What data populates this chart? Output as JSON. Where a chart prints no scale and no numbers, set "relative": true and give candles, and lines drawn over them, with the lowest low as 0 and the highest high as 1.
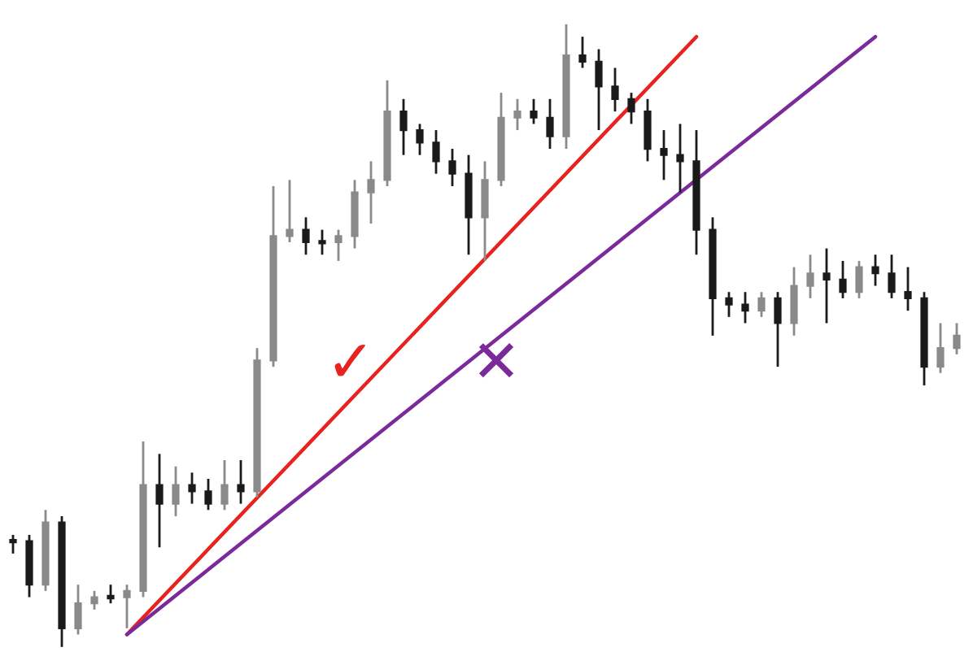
{
  "chart_data": {
    "type": "candlestick",
    "relative": true,
    "tick_labels": false,
    "colors": [
      "#1a1a1a",
      "#1a1a1a",
      "#8a8a8a",
      "#1a1a1a",
      "#8a8a8a",
      "#8a8a8a",
      "#1a1a1a",
      "#8a8a8a",
      "#8a8a8a",
      "#1a1a1a",
      "#8a8a8a",
      "#1a1a1a",
      "#1a1a1a",
      "#8a8a8a",
      "#1a1a1a",
      "#8a8a8a",
      "#8a8a8a",
      "#8a8a8a",
      "#1a1a1a",
      "#1a1a1a",
      "#8a8a8a",
      "#8a8a8a",
      "#8a8a8a",
      "#8a8a8a",
      "#1a1a1a",
      "#1a1a1a",
      "#1a1a1a",
      "#1a1a1a",
      "#1a1a1a",
      "#8a8a8a",
      "#8a8a8a",
      "#8a8a8a",
      "#1a1a1a",
      "#1a1a1a",
      "#8a8a8a",
      "#1a1a1a",
      "#1a1a1a",
      "#1a1a1a",
      "#1a1a1a",
      "#1a1a1a",
      "#1a1a1a",
      "#1a1a1a",
      "#1a1a1a",
      "#1a1a1a",
      "#1a1a1a",
      "#1a1a1a",
      "#8a8a8a",
      "#1a1a1a",
      "#8a8a8a",
      "#8a8a8a",
      "#1a1a1a",
      "#1a1a1a",
      "#8a8a8a",
      "#1a1a1a",
      "#1a1a1a",
      "#1a1a1a",
      "#1a1a1a",
      "#8a8a8a",
      "#8a8a8a"
    ],
    "categories": [
      null,
      null,
      null,
      null,
      null,
      null,
      null,
      null,
      null,
      null,
      null,
      null,
      null,
      null,
      null,
      null,
      null,
      null,
      null,
      null,
      null,
      null,
      null,
      null,
      null,
      null,
      null,
      null,
      null,
      null,
      null,
      null,
      null,
      null,
      null,
      null,
      null,
      null,
      null,
      null,
      null,
      null,
      null,
      null,
      null,
      null,
      null,
      null,
      null,
      null,
      null,
      null,
      null,
      null,
      null,
      null,
      null,
      null,
      null
    ],
    "ohlc": [
      [
        0.17,
        0.18,
        0.15,
        0.17
      ],
      [
        0.17,
        0.18,
        0.08,
        0.1
      ],
      [
        0.1,
        0.22,
        0.09,
        0.2
      ],
      [
        0.2,
        0.21,
        0.0,
        0.03
      ],
      [
        0.03,
        0.1,
        0.02,
        0.07
      ],
      [
        0.07,
        0.09,
        0.06,
        0.08
      ],
      [
        0.08,
        0.1,
        0.07,
        0.08
      ],
      [
        0.08,
        0.1,
        0.03,
        0.09
      ],
      [
        0.09,
        0.33,
        0.08,
        0.26
      ],
      [
        0.26,
        0.31,
        0.16,
        0.23
      ],
      [
        0.23,
        0.29,
        0.21,
        0.26
      ],
      [
        0.26,
        0.28,
        0.23,
        0.25
      ],
      [
        0.25,
        0.27,
        0.22,
        0.23
      ],
      [
        0.23,
        0.3,
        0.22,
        0.26
      ],
      [
        0.26,
        0.3,
        0.23,
        0.25
      ],
      [
        0.25,
        0.48,
        0.24,
        0.46
      ],
      [
        0.46,
        0.74,
        0.45,
        0.66
      ],
      [
        0.66,
        0.75,
        0.65,
        0.67
      ],
      [
        0.67,
        0.69,
        0.63,
        0.65
      ],
      [
        0.65,
        0.67,
        0.63,
        0.65
      ],
      [
        0.65,
        0.67,
        0.62,
        0.66
      ],
      [
        0.66,
        0.75,
        0.64,
        0.73
      ],
      [
        0.73,
        0.78,
        0.68,
        0.75
      ],
      [
        0.75,
        0.91,
        0.74,
        0.86
      ],
      [
        0.86,
        0.88,
        0.79,
        0.83
      ],
      [
        0.83,
        0.84,
        0.79,
        0.81
      ],
      [
        0.81,
        0.83,
        0.76,
        0.78
      ],
      [
        0.78,
        0.8,
        0.74,
        0.76
      ],
      [
        0.76,
        0.79,
        0.63,
        0.69
      ],
      [
        0.69,
        0.78,
        0.62,
        0.75
      ],
      [
        0.75,
        0.89,
        0.74,
        0.85
      ],
      [
        0.85,
        0.88,
        0.83,
        0.86
      ],
      [
        0.86,
        0.88,
        0.84,
        0.85
      ],
      [
        0.85,
        0.88,
        0.8,
        0.82
      ],
      [
        0.82,
        1.0,
        0.8,
        0.95
      ],
      [
        0.95,
        0.98,
        0.93,
        0.94
      ],
      [
        0.94,
        0.96,
        0.83,
        0.9
      ],
      [
        0.9,
        0.93,
        0.86,
        0.88
      ],
      [
        0.88,
        0.89,
        0.84,
        0.86
      ],
      [
        0.86,
        0.88,
        0.78,
        0.8
      ],
      [
        0.8,
        0.83,
        0.75,
        0.79
      ],
      [
        0.79,
        0.84,
        0.73,
        0.78
      ],
      [
        0.78,
        0.83,
        0.63,
        0.67
      ],
      [
        0.67,
        0.69,
        0.5,
        0.56
      ],
      [
        0.56,
        0.57,
        0.53,
        0.55
      ],
      [
        0.55,
        0.57,
        0.52,
        0.54
      ],
      [
        0.54,
        0.57,
        0.53,
        0.56
      ],
      [
        0.56,
        0.57,
        0.45,
        0.52
      ],
      [
        0.52,
        0.61,
        0.5,
        0.58
      ],
      [
        0.58,
        0.63,
        0.56,
        0.6
      ],
      [
        0.6,
        0.64,
        0.52,
        0.59
      ],
      [
        0.59,
        0.62,
        0.56,
        0.57
      ],
      [
        0.57,
        0.62,
        0.56,
        0.61
      ],
      [
        0.61,
        0.63,
        0.58,
        0.6
      ],
      [
        0.6,
        0.63,
        0.56,
        0.57
      ],
      [
        0.57,
        0.61,
        0.54,
        0.56
      ],
      [
        0.56,
        0.57,
        0.42,
        0.45
      ],
      [
        0.45,
        0.52,
        0.44,
        0.48
      ],
      [
        0.48,
        0.52,
        0.47,
        0.5
      ]
    ],
    "series": [
      {
        "type": "line",
        "color": "#e8231f",
        "values": [
          null,
          null,
          null,
          null,
          null,
          null,
          null,
          0.02,
          null,
          null,
          null,
          null,
          null,
          null,
          null,
          null,
          null,
          null,
          null,
          null,
          null,
          null,
          null,
          null,
          null,
          null,
          null,
          null,
          null,
          null,
          null,
          null,
          null,
          null,
          null,
          null,
          null,
          null,
          null,
          null,
          null,
          null,
          0.98,
          null,
          null,
          null,
          null,
          null,
          null,
          null,
          null,
          null,
          null,
          null,
          null,
          null,
          null,
          null,
          null
        ]
      },
      {
        "type": "line",
        "color": "#7b2a9a",
        "values": [
          null,
          null,
          null,
          null,
          null,
          null,
          null,
          0.02,
          null,
          null,
          null,
          null,
          null,
          null,
          null,
          null,
          null,
          null,
          null,
          null,
          null,
          null,
          null,
          null,
          null,
          null,
          null,
          null,
          null,
          null,
          null,
          null,
          null,
          null,
          null,
          null,
          null,
          null,
          null,
          null,
          null,
          null,
          null,
          null,
          null,
          null,
          null,
          null,
          null,
          null,
          null,
          null,
          null,
          0.98,
          null,
          null,
          null,
          null,
          null
        ]
      }
    ],
    "annotations": [
      "✓",
      "✕"
    ]
  }
}
